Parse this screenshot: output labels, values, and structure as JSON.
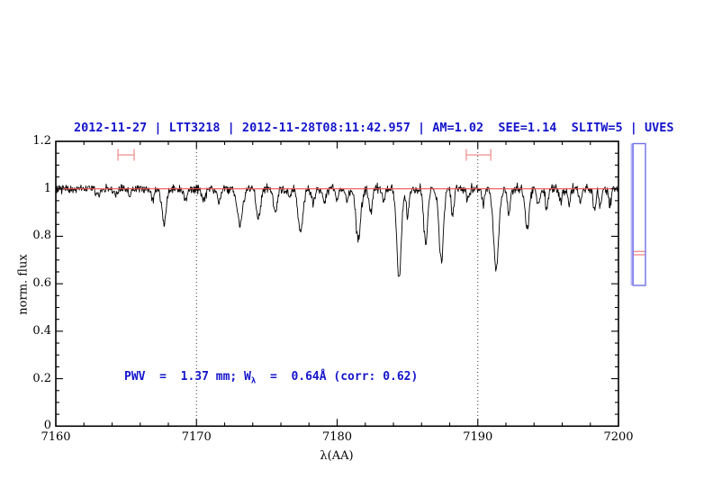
{
  "page": {
    "bg": "#ffffff"
  },
  "header": {
    "title": "2012-11-27 | LTT3218 | 2012-11-28T08:11:42.957 | AM=1.02  SEE=1.14  SLITW=5 | UVES",
    "color": "#1414cc"
  },
  "annotation": {
    "pre": "PWV  =  1.37 mm; W",
    "sub": "λ",
    "post": "  =  0.64Å (corr: 0.62)",
    "color": "#1414cc"
  },
  "chart_data": {
    "type": "line",
    "title": "2012-11-27 | LTT3218 | 2012-11-28T08:11:42.957 | AM=1.02  SEE=1.14  SLITW=5 | UVES",
    "xlabel": "λ(AA)",
    "ylabel": "norm. flux",
    "xlim": [
      7160,
      7200
    ],
    "ylim": [
      0,
      1.2
    ],
    "grid": "off",
    "x_major_ticks": [
      7160,
      7170,
      7180,
      7190,
      7200
    ],
    "x_major_labels": [
      "7160",
      "7170",
      "7180",
      "7190",
      "7200"
    ],
    "x_minor_step": 2,
    "y_major_ticks": [
      0,
      0.2,
      0.4,
      0.6,
      0.8,
      1,
      1.2
    ],
    "y_major_labels": [
      "0",
      "0.2",
      "0.4",
      "0.6",
      "0.8",
      "1",
      "1.2"
    ],
    "y_minor_step": 0.05,
    "dotted_guides_x": [
      7170,
      7190
    ],
    "continuum": {
      "flux": 1.0,
      "color": "#f25252"
    },
    "spectrum_color": "#000000",
    "guide_color": "#333333",
    "noise_sigma": 0.01,
    "seed": 20121127,
    "n_points": 1050,
    "absorption_lines": [
      [
        7163.0,
        0.03,
        0.12
      ],
      [
        7164.2,
        0.03,
        0.12
      ],
      [
        7165.3,
        0.025,
        0.1
      ],
      [
        7166.9,
        0.045,
        0.1
      ],
      [
        7167.7,
        0.14,
        0.16
      ],
      [
        7169.2,
        0.045,
        0.12
      ],
      [
        7170.5,
        0.05,
        0.12
      ],
      [
        7171.6,
        0.055,
        0.12
      ],
      [
        7173.1,
        0.16,
        0.18
      ],
      [
        7174.4,
        0.13,
        0.15
      ],
      [
        7175.6,
        0.1,
        0.14
      ],
      [
        7176.6,
        0.05,
        0.1
      ],
      [
        7177.4,
        0.18,
        0.18
      ],
      [
        7178.3,
        0.06,
        0.12
      ],
      [
        7179.1,
        0.055,
        0.1
      ],
      [
        7180.0,
        0.045,
        0.1
      ],
      [
        7180.7,
        0.05,
        0.1
      ],
      [
        7181.5,
        0.215,
        0.17
      ],
      [
        7182.4,
        0.1,
        0.12
      ],
      [
        7183.3,
        0.05,
        0.1
      ],
      [
        7184.4,
        0.38,
        0.16
      ],
      [
        7185.0,
        0.11,
        0.1
      ],
      [
        7186.3,
        0.23,
        0.14
      ],
      [
        7187.4,
        0.3,
        0.16
      ],
      [
        7188.2,
        0.11,
        0.1
      ],
      [
        7189.3,
        0.045,
        0.1
      ],
      [
        7190.4,
        0.06,
        0.1
      ],
      [
        7191.3,
        0.34,
        0.18
      ],
      [
        7192.2,
        0.11,
        0.1
      ],
      [
        7193.5,
        0.175,
        0.14
      ],
      [
        7194.3,
        0.07,
        0.1
      ],
      [
        7194.9,
        0.09,
        0.1
      ],
      [
        7195.9,
        0.05,
        0.1
      ],
      [
        7196.5,
        0.06,
        0.1
      ],
      [
        7197.3,
        0.055,
        0.1
      ],
      [
        7198.3,
        0.09,
        0.1
      ],
      [
        7198.7,
        0.07,
        0.1
      ],
      [
        7199.4,
        0.07,
        0.1
      ]
    ],
    "range_markers": {
      "color": "#f09898",
      "flux": 1.143,
      "items": [
        {
          "x1": 7164.42,
          "x2": 7165.57
        },
        {
          "x1": 7189.18,
          "x2": 7190.92
        }
      ]
    },
    "side_panel": {
      "border_color": "#7070ea",
      "band_color": "#b9b9f7",
      "line_color": "#ef7f7f",
      "red_line_fluxes": [
        0.736,
        0.722
      ]
    }
  }
}
